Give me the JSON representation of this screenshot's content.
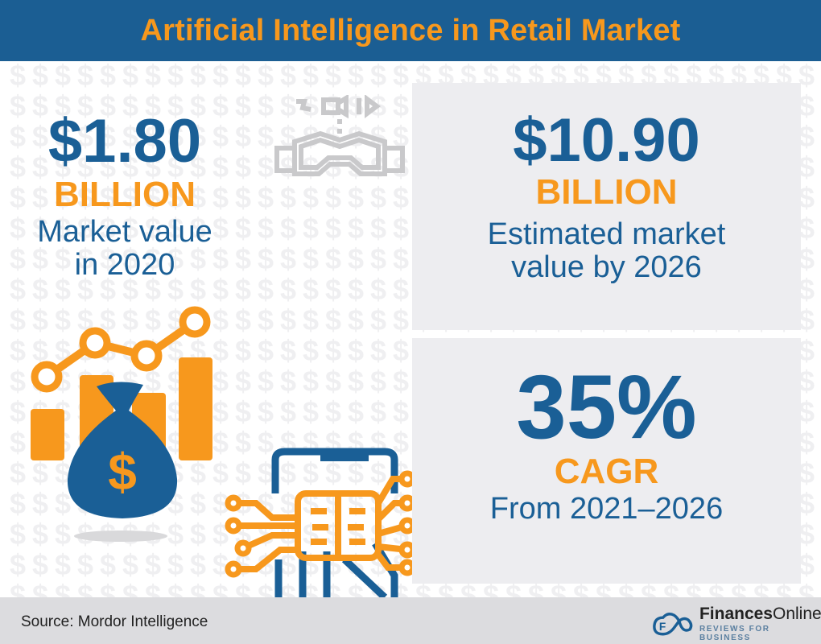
{
  "header": {
    "title": "Artificial Intelligence in Retail Market"
  },
  "stat_2020": {
    "value": "$1.80",
    "unit": "BILLION",
    "label_line1": "Market value",
    "label_line2": "in 2020"
  },
  "stat_2026": {
    "value": "$10.90",
    "unit": "BILLION",
    "label_line1": "Estimated market",
    "label_line2": "value by 2026"
  },
  "stat_cagr": {
    "value": "35%",
    "unit": "CAGR",
    "label": "From 2021–2026"
  },
  "footer": {
    "source": "Source: Mordor Intelligence",
    "brand_bold": "Finances",
    "brand_rest": "Online",
    "brand_tagline": "REVIEWS FOR BUSINESS"
  },
  "icons": [
    "vr-headset-icon",
    "money-bag-chart-icon",
    "ai-chip-phone-icon",
    "dollar-pattern"
  ],
  "colors": {
    "blue": "#1a5f96",
    "orange": "#f7981d",
    "header_bg": "#1b5e93",
    "panel_bg": "#ededf0",
    "footer_bg": "#dcdcdf"
  }
}
